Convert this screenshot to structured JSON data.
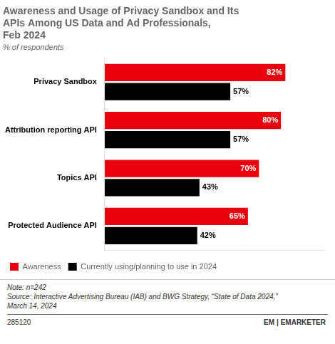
{
  "chart_data": {
    "type": "bar",
    "orientation": "horizontal",
    "title": [
      "Awareness and Usage of Privacy Sandbox and Its",
      "APIs Among US Data and Ad Professionals,",
      "Feb 2024"
    ],
    "subtitle": "% of respondents",
    "categories": [
      "Privacy Sandbox",
      "Attribution reporting API",
      "Topics API",
      "Protected Audience API"
    ],
    "series": [
      {
        "name": "Awareness",
        "color": "#e8000d",
        "values": [
          82,
          80,
          70,
          65
        ],
        "value_labels": [
          "82%",
          "80%",
          "70%",
          "65%"
        ]
      },
      {
        "name": "Currently using/planning to use in 2024",
        "color": "#000000",
        "values": [
          57,
          57,
          43,
          42
        ],
        "value_labels": [
          "57%",
          "57%",
          "43%",
          "42%"
        ]
      }
    ],
    "xlim": [
      0,
      100
    ],
    "grid": false,
    "legend": "lower left",
    "data_labels": true,
    "tick_labels": "y",
    "annotations": [
      "Note: n=242",
      "Source: Interactive Advertising Bureau (IAB) and BWG Strategy, “State of Data 2024,”",
      "March 14, 2024",
      "285120",
      "EM",
      "| EMARKETER"
    ]
  }
}
